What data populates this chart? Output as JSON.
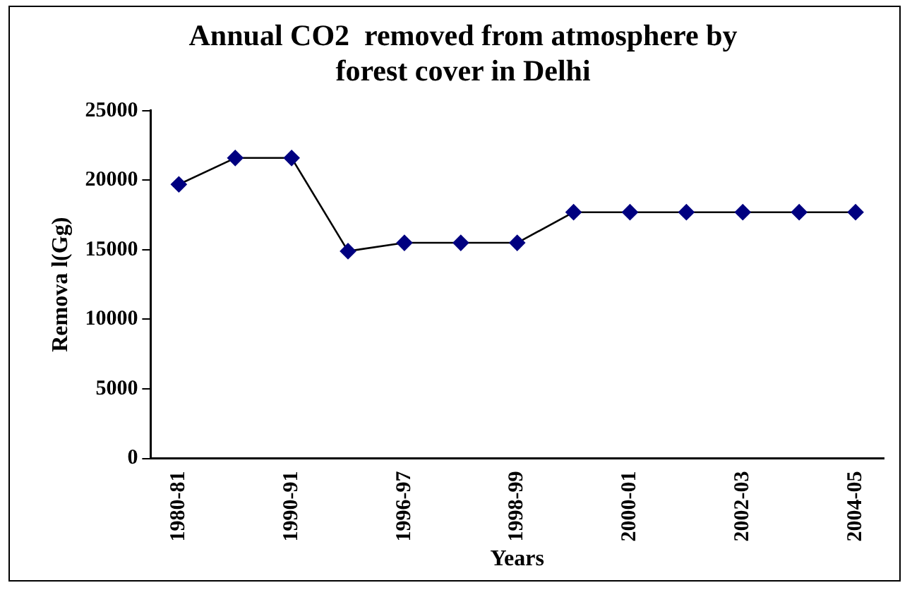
{
  "chart_data": {
    "type": "line",
    "title": "Annual CO2  removed from atmosphere by forest cover in Delhi",
    "xlabel": "Years",
    "ylabel": "Remova l(Gg)",
    "categories": [
      "1980-81",
      null,
      "1990-91",
      null,
      "1996-97",
      null,
      "1998-99",
      null,
      "2000-01",
      null,
      "2002-03",
      null,
      "2004-05"
    ],
    "series": [
      {
        "color": "#000080",
        "values": [
          19700,
          21600,
          21600,
          14900,
          15500,
          15500,
          15500,
          17700,
          17700,
          17700,
          17700,
          17700,
          17700
        ]
      }
    ],
    "ylim": [
      0,
      25000
    ],
    "yticks": [
      0,
      5000,
      10000,
      15000,
      20000,
      25000
    ],
    "grid": false,
    "legend": false,
    "marker": "diamond",
    "line_style": "solid"
  }
}
